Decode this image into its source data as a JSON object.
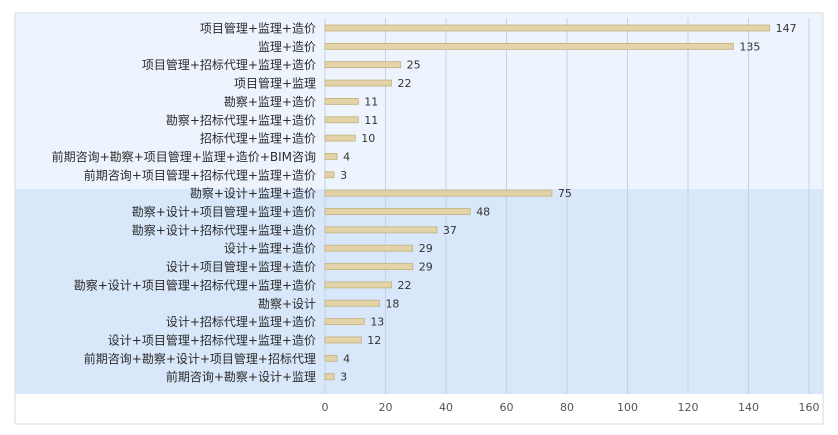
{
  "chart_data": {
    "type": "bar",
    "orientation": "horizontal",
    "categories": [
      "项目管理+监理+造价",
      "监理+造价",
      "项目管理+招标代理+监理+造价",
      "项目管理+监理",
      "勘察+监理+造价",
      "勘察+招标代理+监理+造价",
      "招标代理+监理+造价",
      "前期咨询+勘察+项目管理+监理+造价+BIM咨询",
      "前期咨询+项目管理+招标代理+监理+造价",
      "勘察+设计+监理+造价",
      "勘察+设计+项目管理+监理+造价",
      "勘察+设计+招标代理+监理+造价",
      "设计+监理+造价",
      "设计+项目管理+监理+造价",
      "勘察+设计+项目管理+招标代理+监理+造价",
      "勘察+设计",
      "设计+招标代理+监理+造价",
      "设计+项目管理+招标代理+监理+造价",
      "前期咨询+勘察+设计+项目管理+招标代理",
      "前期咨询+勘察+设计+监理"
    ],
    "values": [
      147,
      135,
      25,
      22,
      11,
      11,
      10,
      4,
      3,
      75,
      48,
      37,
      29,
      29,
      22,
      18,
      13,
      12,
      4,
      3
    ],
    "xlim": [
      0,
      160
    ],
    "x_ticks": [
      0,
      20,
      40,
      60,
      80,
      100,
      120,
      140,
      160
    ],
    "grid": true,
    "group_split_after_index": 8,
    "colors": {
      "bar_fill": "#e2d3a8",
      "bar_stroke": "#c4b07c",
      "top_band": "#eef4fd",
      "bottom_band": "#d9e7fb",
      "grid": "#c5d2e2",
      "label": "#2b2b2b",
      "tick": "#555555",
      "value_label": "#333333",
      "frame": "#d6dbe2"
    }
  }
}
